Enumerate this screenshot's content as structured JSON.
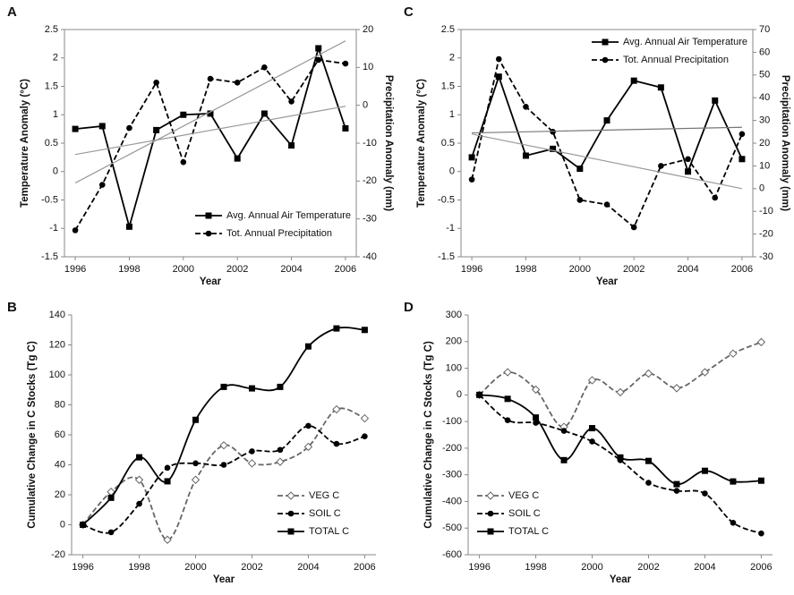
{
  "chart_data": [
    {
      "type": "line",
      "panel_label": "A",
      "x_label": "Year",
      "y_label": "Temperature Anomaly (°C)",
      "y2_label": "Precipitation Anomaly (mm)",
      "x": [
        1996,
        1997,
        1998,
        1999,
        2000,
        2001,
        2002,
        2003,
        2004,
        2005,
        2006
      ],
      "xlim": [
        1995.6,
        2006.4
      ],
      "xticks": [
        1996,
        1998,
        2000,
        2002,
        2004,
        2006
      ],
      "ylim": [
        -1.5,
        2.5
      ],
      "yticks": [
        -1.5,
        -1,
        -0.5,
        0,
        0.5,
        1,
        1.5,
        2,
        2.5
      ],
      "y2lim": [
        -40,
        20
      ],
      "y2ticks": [
        -40,
        -30,
        -20,
        -10,
        0,
        10,
        20
      ],
      "legend": "lower right",
      "smooth": false,
      "series": [
        {
          "name": "Avg. Annual Air Temperature",
          "color": "#000000",
          "marker": "square",
          "dashed": false,
          "values": [
            0.75,
            0.8,
            -0.97,
            0.73,
            1.0,
            1.02,
            0.23,
            1.02,
            0.46,
            2.17,
            0.76
          ]
        },
        {
          "name": "Tot. Annual Precipitation",
          "color": "#000000",
          "marker": "circle",
          "dashed": true,
          "axis": "y2",
          "values": [
            -33,
            -21,
            -6,
            6,
            -15,
            7,
            6,
            10,
            1,
            12,
            11
          ]
        },
        {
          "color": "#999999",
          "marker": "none",
          "dashed": false,
          "values": [
            0.3,
            0.385,
            0.47,
            0.555,
            0.64,
            0.725,
            0.81,
            0.895,
            0.98,
            1.065,
            1.15
          ]
        },
        {
          "color": "#999999",
          "marker": "none",
          "dashed": false,
          "axis": "y2",
          "values": [
            -20.5,
            -16.75,
            -13,
            -9.25,
            -5.5,
            -1.75,
            2,
            5.75,
            9.5,
            13.25,
            17
          ]
        }
      ]
    },
    {
      "type": "line",
      "panel_label": "B",
      "x_label": "Year",
      "y_label": "Cumulative Change in C Stocks (Tg C)",
      "x": [
        1996,
        1997,
        1998,
        1999,
        2000,
        2001,
        2002,
        2003,
        2004,
        2005,
        2006
      ],
      "xlim": [
        1995.6,
        2006.4
      ],
      "xticks": [
        1996,
        1998,
        2000,
        2002,
        2004,
        2006
      ],
      "ylim": [
        -20,
        140
      ],
      "yticks": [
        -20,
        0,
        20,
        40,
        60,
        80,
        100,
        120,
        140
      ],
      "legend": "lower right",
      "smooth": true,
      "series": [
        {
          "name": "VEG C",
          "color": "#666666",
          "marker": "diamond",
          "dashed": true,
          "values": [
            0,
            22,
            30,
            -10,
            30,
            53,
            41,
            42,
            52,
            77,
            71
          ]
        },
        {
          "name": "SOIL C",
          "color": "#000000",
          "marker": "circle",
          "dashed": true,
          "values": [
            0,
            -5,
            14,
            38,
            41,
            40,
            49,
            50,
            66,
            54,
            59
          ]
        },
        {
          "name": "TOTAL C",
          "color": "#000000",
          "marker": "square",
          "dashed": false,
          "values": [
            0,
            18,
            45,
            29,
            70,
            92,
            91,
            92,
            119,
            131,
            130
          ]
        }
      ]
    },
    {
      "type": "line",
      "panel_label": "C",
      "x_label": "Year",
      "y_label": "Temperature Anomaly (°C)",
      "y2_label": "Precipitation Anomaly (mm)",
      "x": [
        1996,
        1997,
        1998,
        1999,
        2000,
        2001,
        2002,
        2003,
        2004,
        2005,
        2006
      ],
      "xlim": [
        1995.6,
        2006.4
      ],
      "xticks": [
        1996,
        1998,
        2000,
        2002,
        2004,
        2006
      ],
      "ylim": [
        -1.5,
        2.5
      ],
      "yticks": [
        -1.5,
        -1,
        -0.5,
        0,
        0.5,
        1,
        1.5,
        2,
        2.5
      ],
      "y2lim": [
        -30,
        70
      ],
      "y2ticks": [
        -30,
        -20,
        -10,
        0,
        10,
        20,
        30,
        40,
        50,
        60,
        70
      ],
      "legend": "upper right",
      "smooth": false,
      "series": [
        {
          "name": "Avg. Annual Air Temperature",
          "color": "#000000",
          "marker": "square",
          "dashed": false,
          "values": [
            0.25,
            1.67,
            0.28,
            0.4,
            0.05,
            0.9,
            1.6,
            1.48,
            0.0,
            1.25,
            0.22
          ]
        },
        {
          "name": "Tot. Annual Precipitation",
          "color": "#000000",
          "marker": "circle",
          "dashed": true,
          "axis": "y2",
          "values": [
            4,
            57,
            36,
            25,
            -5,
            -7,
            -17,
            10,
            13,
            -4,
            24
          ]
        },
        {
          "color": "#777777",
          "marker": "none",
          "dashed": false,
          "values": [
            0.68,
            0.69,
            0.7,
            0.71,
            0.72,
            0.73,
            0.74,
            0.75,
            0.76,
            0.77,
            0.78
          ]
        },
        {
          "color": "#999999",
          "marker": "none",
          "dashed": false,
          "axis": "y2",
          "values": [
            24,
            21.6,
            19.2,
            16.8,
            14.4,
            12,
            9.6,
            7.2,
            4.8,
            2.4,
            0
          ]
        }
      ]
    },
    {
      "type": "line",
      "panel_label": "D",
      "x_label": "Year",
      "y_label": "Cumulative Change in C Stocks (Tg C)",
      "x": [
        1996,
        1997,
        1998,
        1999,
        2000,
        2001,
        2002,
        2003,
        2004,
        2005,
        2006
      ],
      "xlim": [
        1995.6,
        2006.4
      ],
      "xticks": [
        1996,
        1998,
        2000,
        2002,
        2004,
        2006
      ],
      "ylim": [
        -600,
        300
      ],
      "yticks": [
        -600,
        -500,
        -400,
        -300,
        -200,
        -100,
        0,
        100,
        200,
        300
      ],
      "legend": "lower left",
      "smooth": true,
      "series": [
        {
          "name": "VEG C",
          "color": "#666666",
          "marker": "diamond",
          "dashed": true,
          "values": [
            0,
            85,
            20,
            -120,
            55,
            10,
            80,
            25,
            85,
            155,
            198
          ]
        },
        {
          "name": "SOIL C",
          "color": "#000000",
          "marker": "circle",
          "dashed": true,
          "values": [
            0,
            -95,
            -105,
            -135,
            -175,
            -245,
            -330,
            -360,
            -370,
            -480,
            -520
          ]
        },
        {
          "name": "TOTAL C",
          "color": "#000000",
          "marker": "square",
          "dashed": false,
          "values": [
            0,
            -15,
            -85,
            -245,
            -125,
            -235,
            -248,
            -335,
            -285,
            -325,
            -322
          ]
        }
      ]
    }
  ]
}
